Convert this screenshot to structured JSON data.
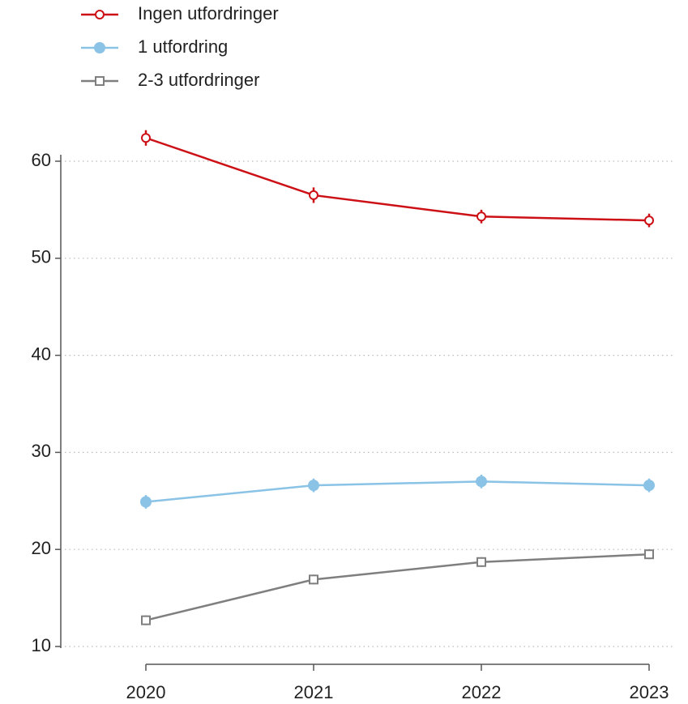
{
  "chart_data": {
    "type": "line",
    "categories": [
      "2020",
      "2021",
      "2022",
      "2023"
    ],
    "series": [
      {
        "name": "Ingen utfordringer",
        "color": "#cc1016",
        "marker": "circle-open",
        "values": [
          62.4,
          56.5,
          54.3,
          53.9
        ],
        "errors": [
          0.8,
          0.8,
          0.7,
          0.7
        ]
      },
      {
        "name": "1 utfordring",
        "color": "#8ac3e6",
        "marker": "circle",
        "values": [
          24.9,
          26.6,
          27.0,
          26.6
        ],
        "errors": [
          0.7,
          0.7,
          0.7,
          0.7
        ]
      },
      {
        "name": "2-3 utfordringer",
        "color": "#7f7f7f",
        "marker": "square-open",
        "values": [
          12.7,
          16.9,
          18.7,
          19.5
        ],
        "errors": [
          0.5,
          0.5,
          0.5,
          0.5
        ]
      }
    ],
    "ylim": [
      10,
      60
    ],
    "yticks": [
      10,
      20,
      30,
      40,
      50,
      60
    ],
    "grid": true,
    "legend": "top-left"
  }
}
